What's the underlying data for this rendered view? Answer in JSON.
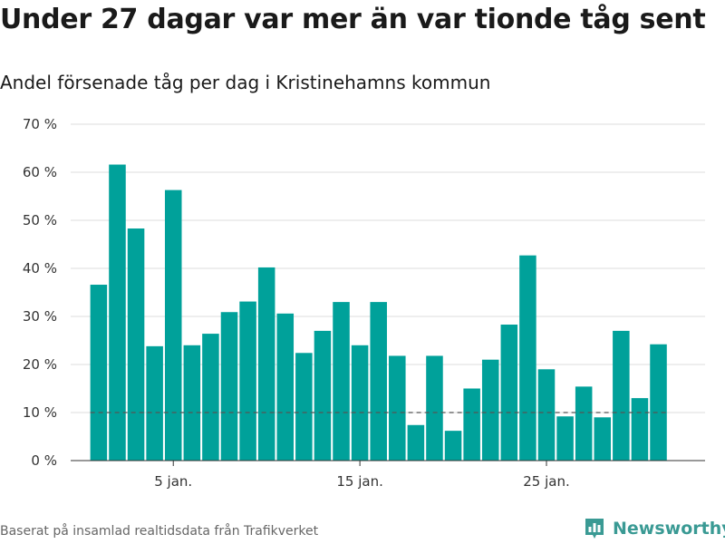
{
  "title": "Under 27 dagar var mer än var tionde tåg sent",
  "subtitle": "Andel försenade tåg per dag i Kristinehamns kommun",
  "footer": "Baserat på insamlad realtidsdata från Trafikverket",
  "brand": "Newsworthy",
  "colors": {
    "bar": "#00a19a",
    "grid": "#dddddd",
    "reference": "#555555",
    "brand": "#3a9a94"
  },
  "chart_data": {
    "type": "bar",
    "x": [
      1,
      2,
      3,
      4,
      5,
      6,
      7,
      8,
      9,
      10,
      11,
      12,
      13,
      14,
      15,
      16,
      17,
      18,
      19,
      20,
      21,
      22,
      23,
      24,
      25,
      26,
      27,
      28,
      29,
      30,
      31
    ],
    "values": [
      36.6,
      61.6,
      48.3,
      23.8,
      56.3,
      24.0,
      26.4,
      30.9,
      33.1,
      40.2,
      30.6,
      22.4,
      27.0,
      33.0,
      24.0,
      33.0,
      21.8,
      7.4,
      21.8,
      6.2,
      15.0,
      21.0,
      28.3,
      42.7,
      19.0,
      9.2,
      15.4,
      9.0,
      27.0,
      13.0,
      24.2
    ],
    "xticks": [
      {
        "value": 5,
        "label": "5 jan."
      },
      {
        "value": 15,
        "label": "15 jan."
      },
      {
        "value": 25,
        "label": "25 jan."
      }
    ],
    "yticks": [
      {
        "value": 0,
        "label": "0 %"
      },
      {
        "value": 10,
        "label": "10 %"
      },
      {
        "value": 20,
        "label": "20 %"
      },
      {
        "value": 30,
        "label": "30 %"
      },
      {
        "value": 40,
        "label": "40 %"
      },
      {
        "value": 50,
        "label": "50 %"
      },
      {
        "value": 60,
        "label": "60 %"
      },
      {
        "value": 70,
        "label": "70 %"
      }
    ],
    "ylim": [
      0,
      70
    ],
    "xlim": [
      -0.5,
      33.5
    ],
    "reference_line": 10,
    "grid": true,
    "xlabel": "",
    "ylabel": ""
  }
}
